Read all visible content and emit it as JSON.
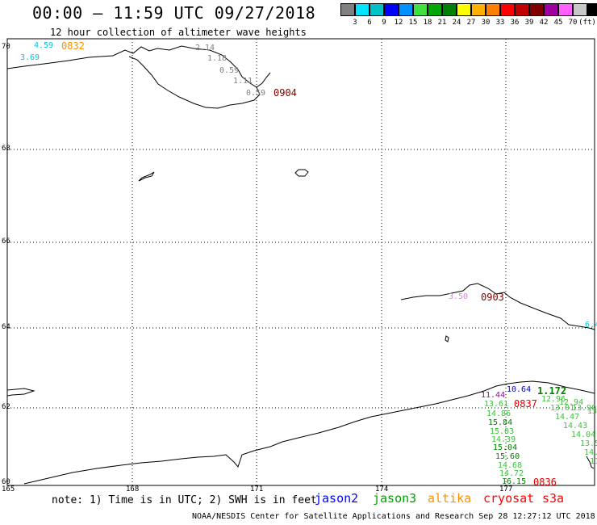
{
  "header": {
    "title": "00:00 – 11:59 UTC 09/27/2018",
    "subtitle": "12 hour collection of altimeter wave heights"
  },
  "legend": {
    "colors": [
      "#808080",
      "#00e5ff",
      "#00c0c8",
      "#0000ff",
      "#0090ff",
      "#40e040",
      "#00a800",
      "#008000",
      "#ffff00",
      "#ffb000",
      "#ff7f00",
      "#ff0000",
      "#c00000",
      "#800000",
      "#a000a0",
      "#ff60ff",
      "#c8c8c8",
      "#000000"
    ],
    "labels": [
      "3",
      "6",
      "9",
      "12",
      "15",
      "18",
      "21",
      "24",
      "27",
      "30",
      "33",
      "36",
      "39",
      "42",
      "45",
      "70",
      "(ft)"
    ]
  },
  "map": {
    "lat_labels": [
      "70",
      "68",
      "66",
      "64",
      "62",
      "60"
    ],
    "lon_labels": [
      "165",
      "168",
      "171",
      "174",
      "177"
    ],
    "wave_labels": [
      {
        "text": "4.59",
        "color": "#00c8d8"
      },
      {
        "text": "3.69",
        "color": "#00c8d8"
      },
      {
        "text": "2.14",
        "color": "#808080"
      },
      {
        "text": "1.18",
        "color": "#808080"
      },
      {
        "text": "0.59",
        "color": "#808080"
      },
      {
        "text": "1.11",
        "color": "#808080"
      },
      {
        "text": "0.59",
        "color": "#808080"
      },
      {
        "text": "3.50",
        "color": "#e080e0"
      },
      {
        "text": "6.4",
        "color": "#00c8d8"
      },
      {
        "text": "10.64",
        "color": "#0000c0"
      },
      {
        "text": "11.44",
        "color": "#a000a0"
      },
      {
        "text": "1.172",
        "color": "#008000"
      },
      {
        "text": "12.96",
        "color": "#40c040"
      },
      {
        "text": "13.61",
        "color": "#40c040"
      },
      {
        "text": "14.86",
        "color": "#40c040"
      },
      {
        "text": "15.84",
        "color": "#008000"
      },
      {
        "text": "15.03",
        "color": "#40c040"
      },
      {
        "text": "14.39",
        "color": "#40c040"
      },
      {
        "text": "15.04",
        "color": "#008000"
      },
      {
        "text": "15.60",
        "color": "#008000"
      },
      {
        "text": "14.68",
        "color": "#40c040"
      },
      {
        "text": "14.72",
        "color": "#40c040"
      },
      {
        "text": "16.15",
        "color": "#008000"
      },
      {
        "text": "12.94",
        "color": "#40c040"
      },
      {
        "text": "13.01",
        "color": "#40c040"
      },
      {
        "text": "13.90",
        "color": "#40c040"
      },
      {
        "text": "14.47",
        "color": "#40c040"
      },
      {
        "text": "14.43",
        "color": "#40c040"
      },
      {
        "text": "14.04",
        "color": "#40c040"
      },
      {
        "text": "13.5",
        "color": "#40c040"
      },
      {
        "text": "14.",
        "color": "#40c040"
      },
      {
        "text": "13",
        "color": "#40c040"
      },
      {
        "text": "11",
        "color": "#40c040"
      }
    ],
    "time_labels": [
      {
        "text": "0832",
        "color": "#ff9000"
      },
      {
        "text": "0904",
        "color": "#800000"
      },
      {
        "text": "0903",
        "color": "#800000"
      },
      {
        "text": "0837",
        "color": "#e00000"
      },
      {
        "text": "0836",
        "color": "#e00000"
      }
    ]
  },
  "footer": {
    "note": "note: 1) Time is in UTC; 2) SWH is in feet",
    "satellites": [
      {
        "name": "jason2",
        "color": "#0000ff"
      },
      {
        "name": "jason3",
        "color": "#00a000"
      },
      {
        "name": "altika",
        "color": "#ff9000"
      },
      {
        "name": "cryosat",
        "color": "#ff0000"
      },
      {
        "name": "s3a",
        "color": "#ff0000"
      }
    ],
    "credit": "NOAA/NESDIS Center for Satellite Applications and Research   Sep 28 12:27:12 UTC 2018"
  }
}
